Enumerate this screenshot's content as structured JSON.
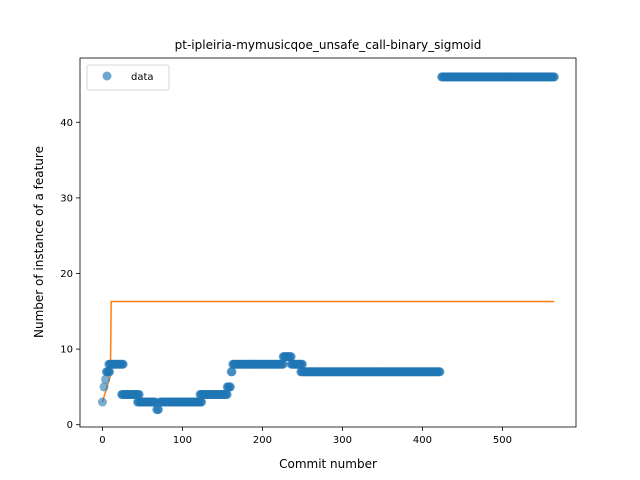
{
  "chart_data": {
    "type": "scatter",
    "title": "pt-ipleiria-mymusicqoe_unsafe_call-binary_sigmoid",
    "xlabel": "Commit number",
    "ylabel": "Number of instance of a feature",
    "xlim": [
      -28,
      592
    ],
    "ylim": [
      -0.3,
      48.5
    ],
    "xticks": [
      0,
      100,
      200,
      300,
      400,
      500
    ],
    "yticks": [
      0,
      10,
      20,
      30,
      40
    ],
    "grid": false,
    "legend": {
      "position": "top-left",
      "entries": [
        "data"
      ]
    },
    "colors": {
      "data": "#1f77b4",
      "fit": "#ff7f0e"
    },
    "series": [
      {
        "name": "data",
        "kind": "scatter",
        "segments": [
          {
            "from": 0,
            "to": 0,
            "y": 3
          },
          {
            "from": 2,
            "to": 2,
            "y": 5
          },
          {
            "from": 4,
            "to": 4,
            "y": 6
          },
          {
            "from": 5,
            "to": 9,
            "y": 7
          },
          {
            "from": 8,
            "to": 26,
            "y": 8
          },
          {
            "from": 24,
            "to": 46,
            "y": 4
          },
          {
            "from": 44,
            "to": 66,
            "y": 3
          },
          {
            "from": 68,
            "to": 70,
            "y": 2
          },
          {
            "from": 72,
            "to": 124,
            "y": 3
          },
          {
            "from": 122,
            "to": 156,
            "y": 4
          },
          {
            "from": 156,
            "to": 160,
            "y": 5
          },
          {
            "from": 161,
            "to": 162,
            "y": 7
          },
          {
            "from": 163,
            "to": 226,
            "y": 8
          },
          {
            "from": 226,
            "to": 236,
            "y": 9
          },
          {
            "from": 236,
            "to": 250,
            "y": 8
          },
          {
            "from": 248,
            "to": 422,
            "y": 7
          },
          {
            "from": 424,
            "to": 565,
            "y": 46
          }
        ]
      },
      {
        "name": "",
        "kind": "line",
        "x": [
          0,
          10,
          11,
          565
        ],
        "y": [
          3,
          6.5,
          16.3,
          16.3
        ]
      }
    ]
  }
}
